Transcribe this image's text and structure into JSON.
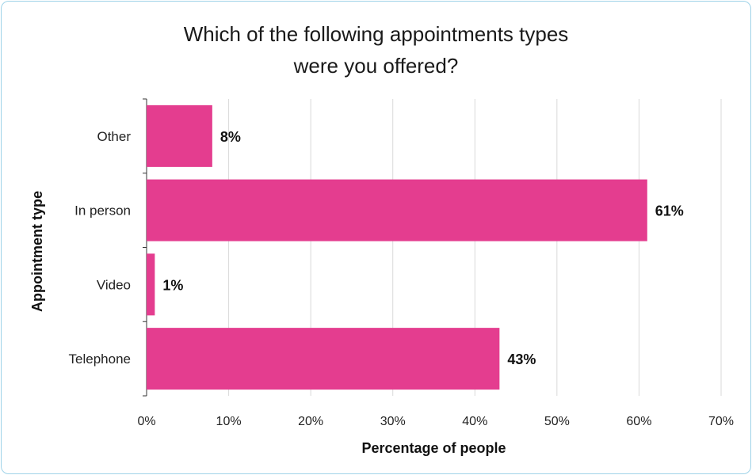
{
  "chart_data": {
    "type": "bar",
    "orientation": "horizontal",
    "title": [
      "Which of the following appointments types",
      "were you offered?"
    ],
    "xlabel": "Percentage of people",
    "ylabel": "Appointment type",
    "categories": [
      "Other",
      "In person",
      "Video",
      "Telephone"
    ],
    "values": [
      8,
      61,
      1,
      43
    ],
    "value_labels": [
      "8%",
      "61%",
      "1%",
      "43%"
    ],
    "xlim": [
      0,
      70
    ],
    "x_ticks": [
      0,
      10,
      20,
      30,
      40,
      50,
      60,
      70
    ],
    "x_tick_labels": [
      "0%",
      "10%",
      "20%",
      "30%",
      "40%",
      "50%",
      "60%",
      "70%"
    ],
    "grid": "vertical",
    "bar_color": "#e43d8f"
  }
}
